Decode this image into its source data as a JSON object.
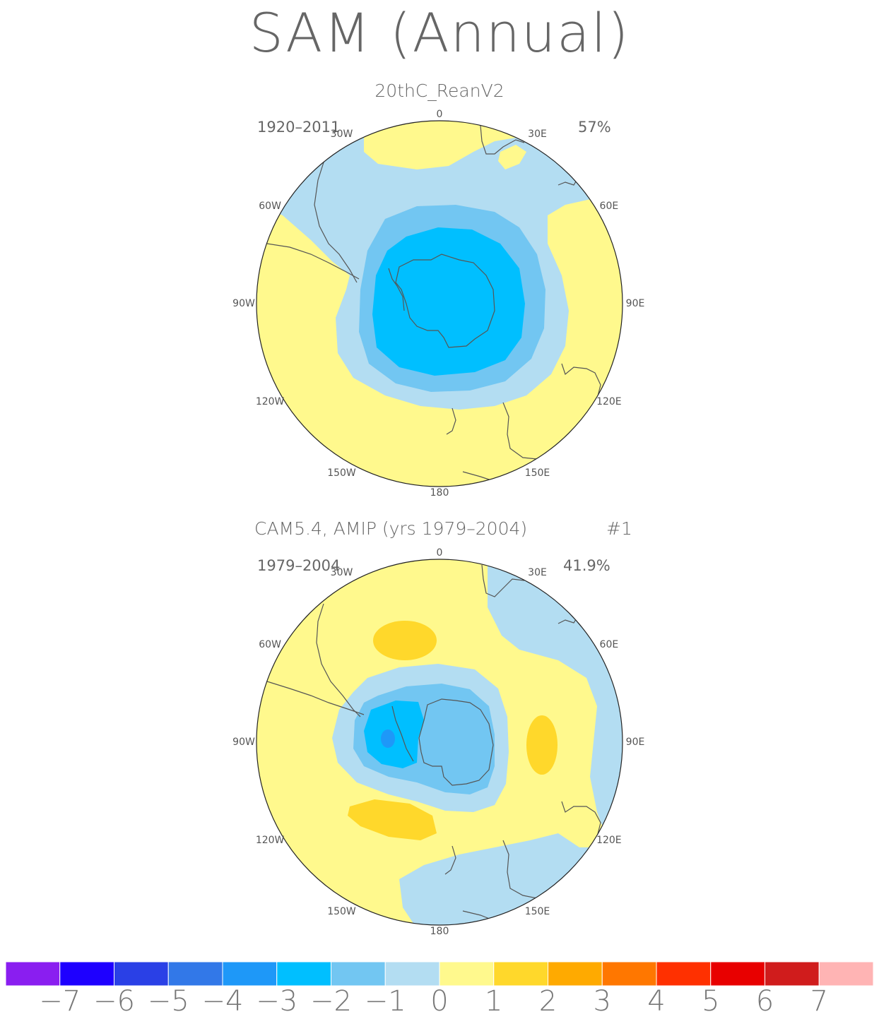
{
  "title": "SAM (Annual)",
  "colors": {
    "c_m3": "#00BFFF",
    "c_m2": "#72C6F2",
    "c_m1": "#B3DDF2",
    "c_p0": "#FFF98D",
    "c_p1": "#FFD82B",
    "coast": "#555555",
    "outline": "#222222"
  },
  "lon_labels": [
    "0",
    "30E",
    "60E",
    "90E",
    "120E",
    "150E",
    "180",
    "150W",
    "120W",
    "90W",
    "60W",
    "30W"
  ],
  "panels": [
    {
      "name": "20thC_ReanV2",
      "period": "1920–2011",
      "variance": "57%"
    },
    {
      "name": "CAM5.4, AMIP (yrs 1979–2004)",
      "member": "#1",
      "period": "1979–2004",
      "variance": "41.9%"
    }
  ],
  "colorbar": {
    "colors": [
      "#8A1EF0",
      "#1E00FF",
      "#2A40E6",
      "#3278E8",
      "#1E98F8",
      "#00BFFF",
      "#72C6F2",
      "#B3DDF2",
      "#FFF98D",
      "#FFD82B",
      "#FFAA00",
      "#FF7700",
      "#FF3000",
      "#E80000",
      "#D01C1C",
      "#FFB4B4"
    ],
    "labels": [
      "−7",
      "−6",
      "−5",
      "−4",
      "−3",
      "−2",
      "−1",
      "0",
      "1",
      "2",
      "3",
      "4",
      "5",
      "6",
      "7"
    ]
  }
}
